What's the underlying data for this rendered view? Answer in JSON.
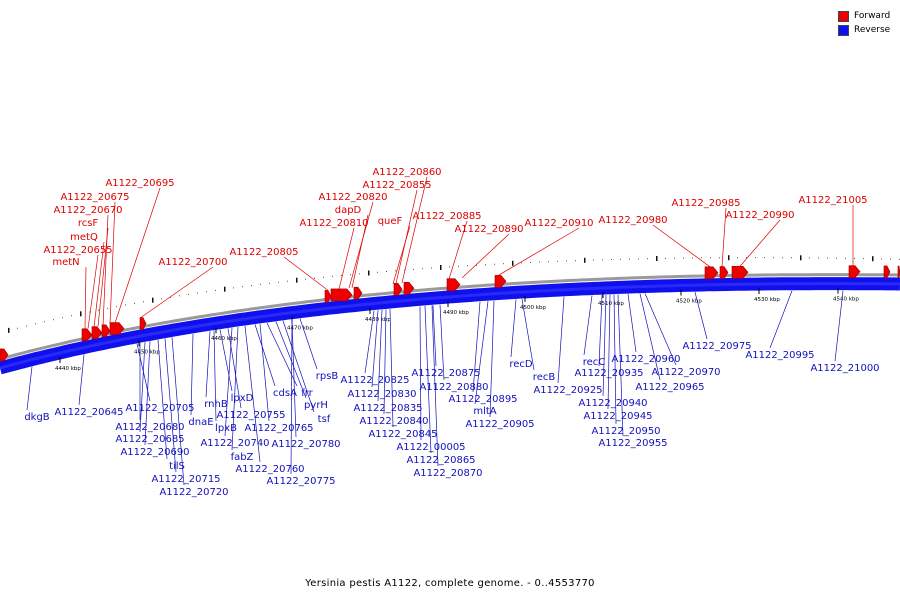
{
  "legend": {
    "forward": {
      "label": "Forward",
      "color": "#ee0000"
    },
    "reverse": {
      "label": "Reverse",
      "color": "#1010ee"
    }
  },
  "caption": "Yersinia pestis A1122, complete genome. - 0..4553770",
  "ticks": [
    "4440 kbp",
    "4450 kbp",
    "4460 kbp",
    "4470 kbp",
    "4480 kbp",
    "4490 kbp",
    "4500 kbp",
    "4510 kbp",
    "4520 kbp",
    "4530 kbp",
    "4540 kbp"
  ],
  "forward_genes": [
    "A1122_20695",
    "A1122_20675",
    "A1122_20670",
    "rcsF",
    "metQ",
    "A1122_20655",
    "metN",
    "A1122_20700",
    "A1122_20805",
    "A1122_20820",
    "dapD",
    "A1122_20810",
    "A1122_20860",
    "A1122_20855",
    "queF",
    "A1122_20885",
    "A1122_20890",
    "A1122_20910",
    "A1122_20980",
    "A1122_20985",
    "A1122_20990",
    "A1122_21005"
  ],
  "reverse_genes": [
    "dkgB",
    "A1122_20645",
    "A1122_20705",
    "A1122_20680",
    "A1122_20685",
    "A1122_20690",
    "tilS",
    "A1122_20715",
    "A1122_20720",
    "dnaE",
    "rnhB",
    "lpxB",
    "lpxD",
    "A1122_20755",
    "A1122_20740",
    "fabZ",
    "A1122_20760",
    "cdsA",
    "A1122_20765",
    "frr",
    "pyrH",
    "tsf",
    "rpsB",
    "A1122_20780",
    "A1122_20775",
    "A1122_20825",
    "A1122_20830",
    "A1122_20835",
    "A1122_20840",
    "A1122_20845",
    "A1122_00005",
    "A1122_20865",
    "A1122_20870",
    "A1122_20875",
    "A1122_20880",
    "A1122_20895",
    "mltA",
    "A1122_20905",
    "recD",
    "recB",
    "A1122_20925",
    "recC",
    "A1122_20935",
    "A1122_20940",
    "A1122_20945",
    "A1122_20950",
    "A1122_20955",
    "A1122_20960",
    "A1122_20970",
    "A1122_20965",
    "A1122_20975",
    "A1122_20995",
    "A1122_21000"
  ]
}
